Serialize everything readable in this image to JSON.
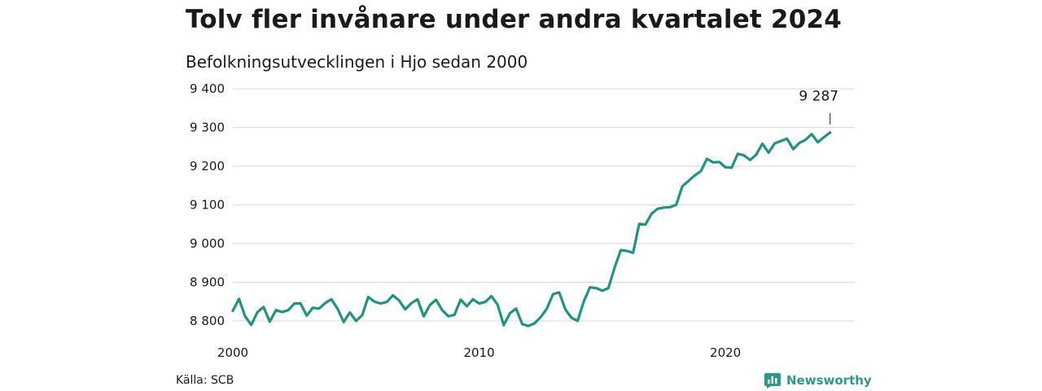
{
  "header": {
    "title": "Tolv fler invånare under andra kvartalet 2024",
    "subtitle": "Befolkningsutvecklingen i Hjo sedan 2000"
  },
  "footer": {
    "source": "Källa: SCB",
    "brand": "Newsworthy",
    "brand_icon": "newsworthy-logo-icon"
  },
  "chart_data": {
    "type": "line",
    "title": "Tolv fler invånare under andra kvartalet 2024",
    "subtitle": "Befolkningsutvecklingen i Hjo sedan 2000",
    "xlabel": "",
    "ylabel": "",
    "x_start": 2000.0,
    "x_step": 0.25,
    "xlim": [
      2000,
      2025.25
    ],
    "ylim": [
      8770,
      9410
    ],
    "y_ticks": [
      8800,
      8900,
      9000,
      9100,
      9200,
      9300,
      9400
    ],
    "y_tick_labels": [
      "8 800",
      "8 900",
      "9 000",
      "9 100",
      "9 200",
      "9 300",
      "9 400"
    ],
    "x_ticks": [
      2000,
      2010,
      2020
    ],
    "x_tick_labels": [
      "2000",
      "2010",
      "2020"
    ],
    "grid": "horizontal",
    "color": "#1f9484",
    "end_label": "9 287",
    "series": [
      {
        "values": [
          8826,
          8857,
          8812,
          8790,
          8823,
          8836,
          8798,
          8828,
          8823,
          8828,
          8845,
          8845,
          8814,
          8834,
          8832,
          8846,
          8856,
          8832,
          8797,
          8822,
          8800,
          8815,
          8862,
          8850,
          8845,
          8849,
          8866,
          8853,
          8830,
          8846,
          8856,
          8812,
          8841,
          8855,
          8828,
          8812,
          8816,
          8855,
          8838,
          8856,
          8845,
          8849,
          8864,
          8842,
          8789,
          8820,
          8832,
          8792,
          8787,
          8794,
          8810,
          8832,
          8869,
          8874,
          8830,
          8808,
          8800,
          8851,
          8887,
          8885,
          8878,
          8885,
          8938,
          8983,
          8981,
          8976,
          9051,
          9049,
          9077,
          9090,
          9093,
          9094,
          9100,
          9148,
          9162,
          9176,
          9187,
          9219,
          9210,
          9211,
          9197,
          9196,
          9232,
          9228,
          9216,
          9230,
          9258,
          9235,
          9259,
          9265,
          9271,
          9244,
          9260,
          9268,
          9283,
          9262,
          9275,
          9287
        ]
      }
    ]
  }
}
